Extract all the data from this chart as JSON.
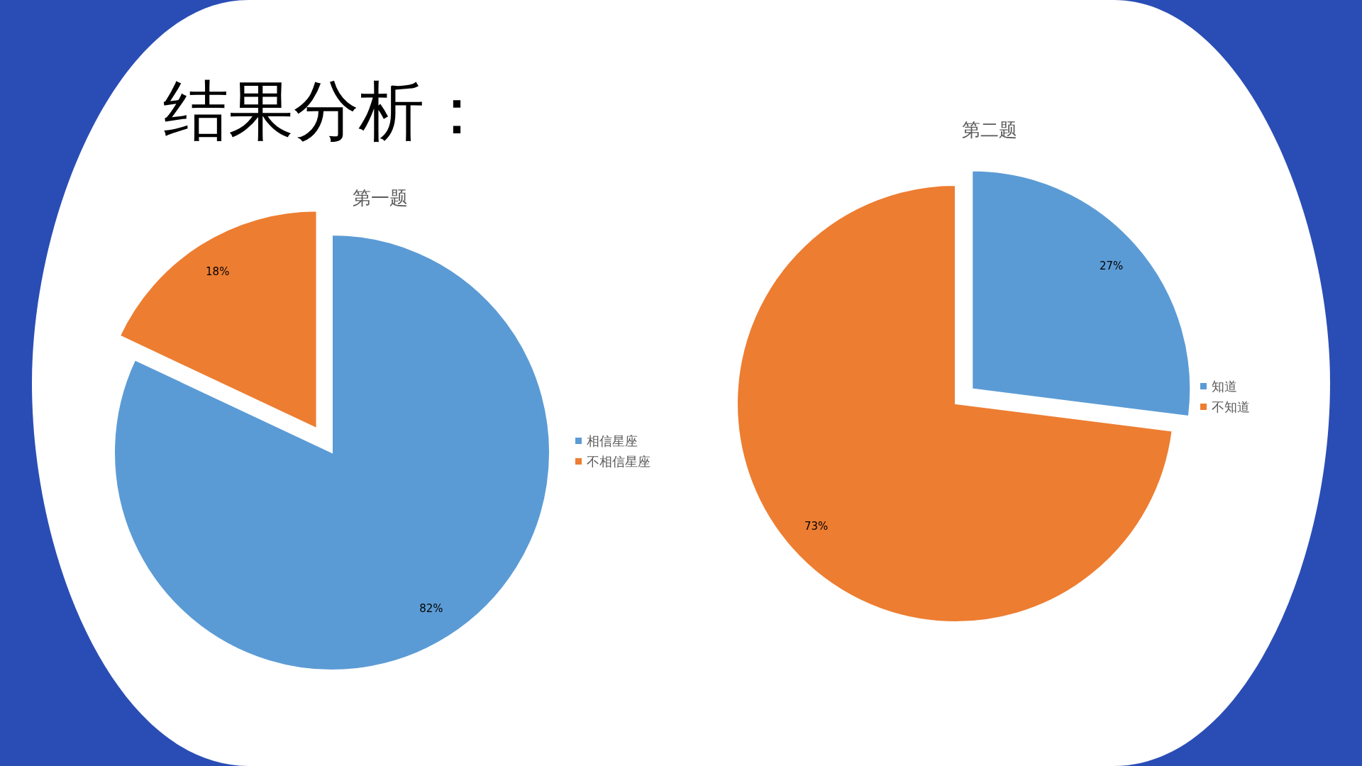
{
  "chart_data": [
    {
      "type": "pie",
      "title": "第一题",
      "annotations": [
        "结果分析："
      ],
      "categories": [
        "相信星座",
        "不相信星座"
      ],
      "values": [
        82,
        18
      ],
      "colors": [
        "#5b9bd5",
        "#ed7d31"
      ],
      "value_labels": [
        "82%",
        "18%"
      ],
      "legend": "right"
    },
    {
      "type": "pie",
      "title": "第二题",
      "categories": [
        "知道",
        "不知道"
      ],
      "values": [
        27,
        73
      ],
      "colors": [
        "#5b9bd5",
        "#ed7d31"
      ],
      "value_labels": [
        "27%",
        "73%"
      ],
      "legend": "right"
    }
  ]
}
